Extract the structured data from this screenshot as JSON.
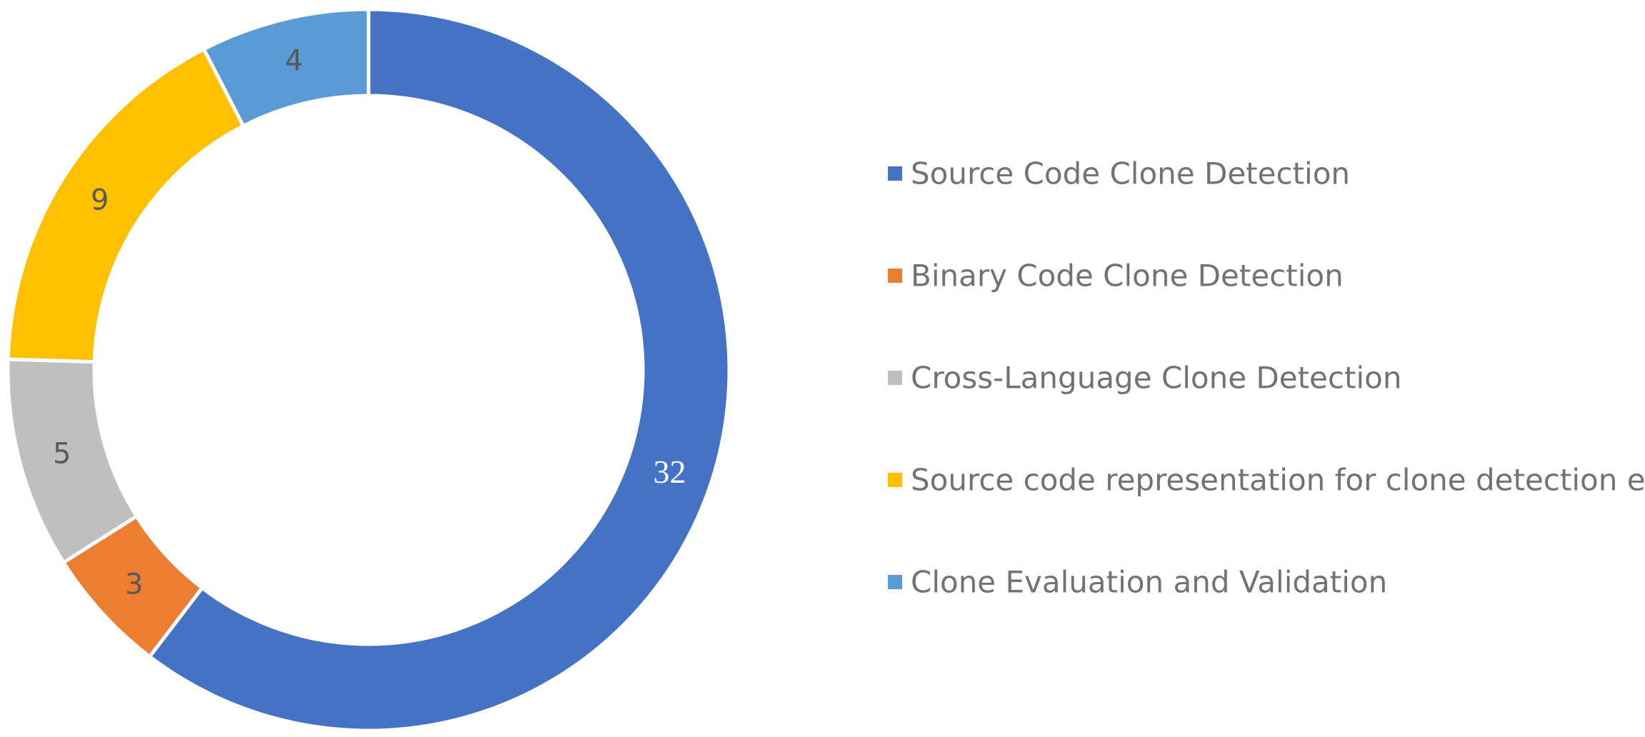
{
  "chart_data": {
    "type": "pie",
    "variant": "doughnut",
    "title": "",
    "legend_position": "right",
    "categories": [
      "Source Code Clone Detection",
      "Binary Code Clone Detection",
      "Cross-Language Clone Detection",
      "Source code representation for clone detection etc.",
      "Clone Evaluation and Validation"
    ],
    "values": [
      32,
      3,
      5,
      9,
      4
    ],
    "data_labels": [
      "32",
      "3",
      "5",
      "9",
      "4"
    ],
    "colors": [
      "#4472C4",
      "#ED7D31",
      "#BFBFBF",
      "#FFC000",
      "#5B9BD5"
    ]
  }
}
